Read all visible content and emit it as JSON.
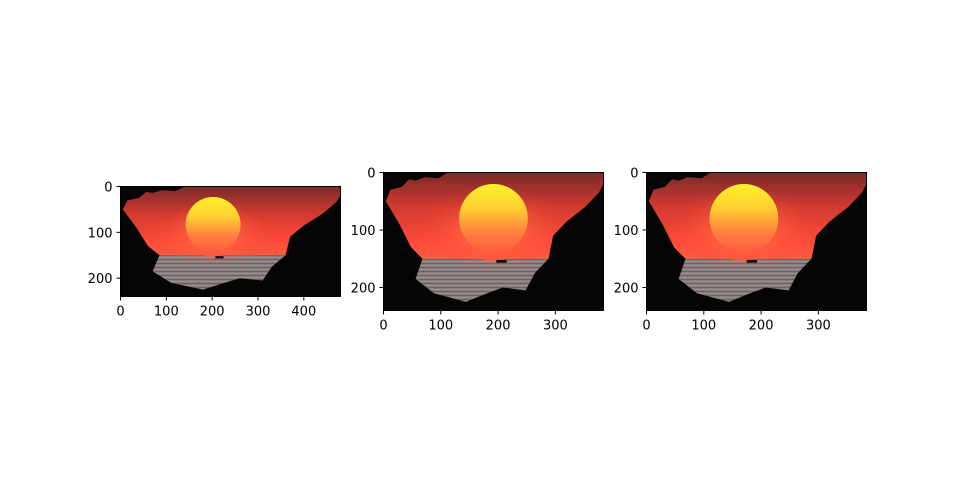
{
  "chart_data": [
    {
      "type": "image",
      "title": "",
      "xlabel": "",
      "ylabel": "",
      "image_size": [
        480,
        240
      ],
      "xlim": [
        0,
        480
      ],
      "ylim": [
        240,
        0
      ],
      "xticks": [
        0,
        100,
        200,
        300,
        400
      ],
      "yticks": [
        0,
        100,
        200
      ],
      "sun_center": [
        202,
        83
      ],
      "sun_radius": 60,
      "horizon_y": 150
    },
    {
      "type": "image",
      "title": "",
      "xlabel": "",
      "ylabel": "",
      "image_size": [
        384,
        240
      ],
      "xlim": [
        0,
        384
      ],
      "ylim": [
        240,
        0
      ],
      "xticks": [
        0,
        100,
        200,
        300
      ],
      "yticks": [
        0,
        100,
        200
      ],
      "sun_center": [
        192,
        80
      ],
      "sun_radius": 60,
      "horizon_y": 150
    },
    {
      "type": "image",
      "title": "",
      "xlabel": "",
      "ylabel": "",
      "image_size": [
        384,
        240
      ],
      "xlim": [
        0,
        384
      ],
      "ylim": [
        240,
        0
      ],
      "xticks": [
        0,
        100,
        200,
        300
      ],
      "yticks": [
        0,
        100,
        200
      ],
      "sun_center": [
        170,
        80
      ],
      "sun_radius": 60,
      "horizon_y": 150
    }
  ]
}
